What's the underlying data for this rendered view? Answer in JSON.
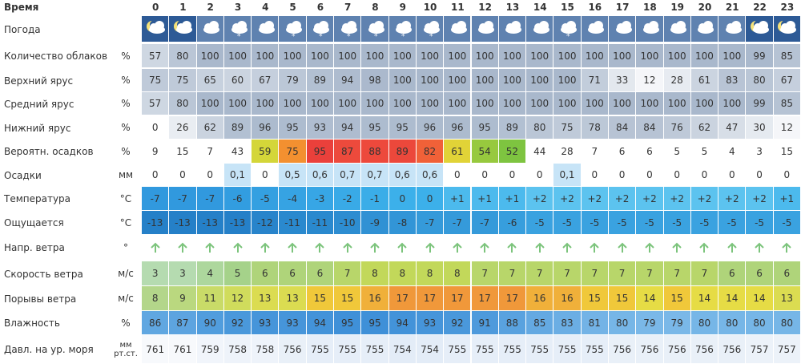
{
  "header": {
    "label": "Время",
    "hours": [
      0,
      1,
      2,
      3,
      4,
      5,
      6,
      7,
      8,
      9,
      10,
      11,
      12,
      13,
      14,
      15,
      16,
      17,
      18,
      19,
      20,
      21,
      22,
      23
    ]
  },
  "rows": [
    {
      "label": "Погода"
    },
    {
      "label": "Количество облаков",
      "unit": "%",
      "values": [
        57,
        80,
        100,
        100,
        100,
        100,
        100,
        100,
        100,
        100,
        100,
        100,
        100,
        100,
        100,
        100,
        100,
        100,
        100,
        100,
        100,
        100,
        99,
        85
      ]
    },
    {
      "label": "Верхний ярус",
      "unit": "%",
      "values": [
        75,
        75,
        65,
        60,
        67,
        79,
        89,
        94,
        98,
        100,
        100,
        100,
        100,
        100,
        100,
        100,
        71,
        33,
        12,
        28,
        61,
        83,
        80,
        67
      ]
    },
    {
      "label": "Средний ярус",
      "unit": "%",
      "values": [
        57,
        80,
        100,
        100,
        100,
        100,
        100,
        100,
        100,
        100,
        100,
        100,
        100,
        100,
        100,
        100,
        100,
        100,
        100,
        100,
        100,
        100,
        99,
        85
      ]
    },
    {
      "label": "Нижний ярус",
      "unit": "%",
      "values": [
        0,
        26,
        62,
        89,
        96,
        95,
        93,
        94,
        95,
        95,
        96,
        96,
        95,
        89,
        80,
        75,
        78,
        84,
        84,
        76,
        62,
        47,
        30,
        12
      ]
    },
    {
      "label": "Вероятн. осадков",
      "unit": "%",
      "values": [
        9,
        15,
        7,
        43,
        59,
        75,
        95,
        87,
        88,
        89,
        82,
        61,
        54,
        52,
        44,
        28,
        7,
        6,
        6,
        5,
        5,
        4,
        3,
        15
      ]
    },
    {
      "label": "Осадки",
      "unit": "мм",
      "values": [
        "0",
        "0",
        "0",
        "0,1",
        "0",
        "0,5",
        "0,6",
        "0,7",
        "0,7",
        "0,6",
        "0,6",
        "0",
        "0",
        "0",
        "0",
        "0,1",
        "0",
        "0",
        "0",
        "0",
        "0",
        "0",
        "0",
        "0"
      ]
    },
    {
      "label": "Температура",
      "unit": "°C",
      "values": [
        "-7",
        "-7",
        "-7",
        "-6",
        "-5",
        "-4",
        "-3",
        "-2",
        "-1",
        "0",
        "0",
        "+1",
        "+1",
        "+1",
        "+2",
        "+2",
        "+2",
        "+2",
        "+2",
        "+2",
        "+2",
        "+2",
        "+2",
        "+1"
      ]
    },
    {
      "label": "Ощущается",
      "unit": "°C",
      "values": [
        -13,
        -13,
        -13,
        -13,
        -12,
        -11,
        -11,
        -10,
        -9,
        -8,
        -7,
        -7,
        -7,
        -6,
        -5,
        -5,
        -5,
        -5,
        -5,
        -5,
        -5,
        -5,
        -5,
        -5
      ]
    },
    {
      "label": "Напр. ветра",
      "unit": "°"
    },
    {
      "label": "Скорость ветра",
      "unit": "м/с",
      "values": [
        3,
        3,
        4,
        5,
        6,
        6,
        6,
        7,
        8,
        8,
        8,
        8,
        7,
        7,
        7,
        7,
        7,
        7,
        7,
        7,
        7,
        6,
        6,
        6
      ]
    },
    {
      "label": "Порывы ветра",
      "unit": "м/с",
      "values": [
        8,
        9,
        11,
        12,
        13,
        13,
        15,
        15,
        16,
        17,
        17,
        17,
        17,
        17,
        16,
        16,
        15,
        15,
        14,
        15,
        14,
        14,
        14,
        13
      ]
    },
    {
      "label": "Влажность",
      "unit": "%",
      "values": [
        86,
        87,
        90,
        92,
        93,
        93,
        94,
        95,
        95,
        94,
        93,
        92,
        91,
        88,
        85,
        83,
        81,
        80,
        79,
        79,
        80,
        80,
        80,
        80
      ]
    },
    {
      "label": "Давл. на ур. моря",
      "unit": [
        "мм",
        "рт.ст."
      ],
      "values": [
        761,
        761,
        759,
        758,
        758,
        756,
        755,
        755,
        755,
        754,
        754,
        755,
        755,
        755,
        755,
        755,
        755,
        756,
        756,
        756,
        756,
        756,
        757,
        757
      ]
    }
  ]
}
